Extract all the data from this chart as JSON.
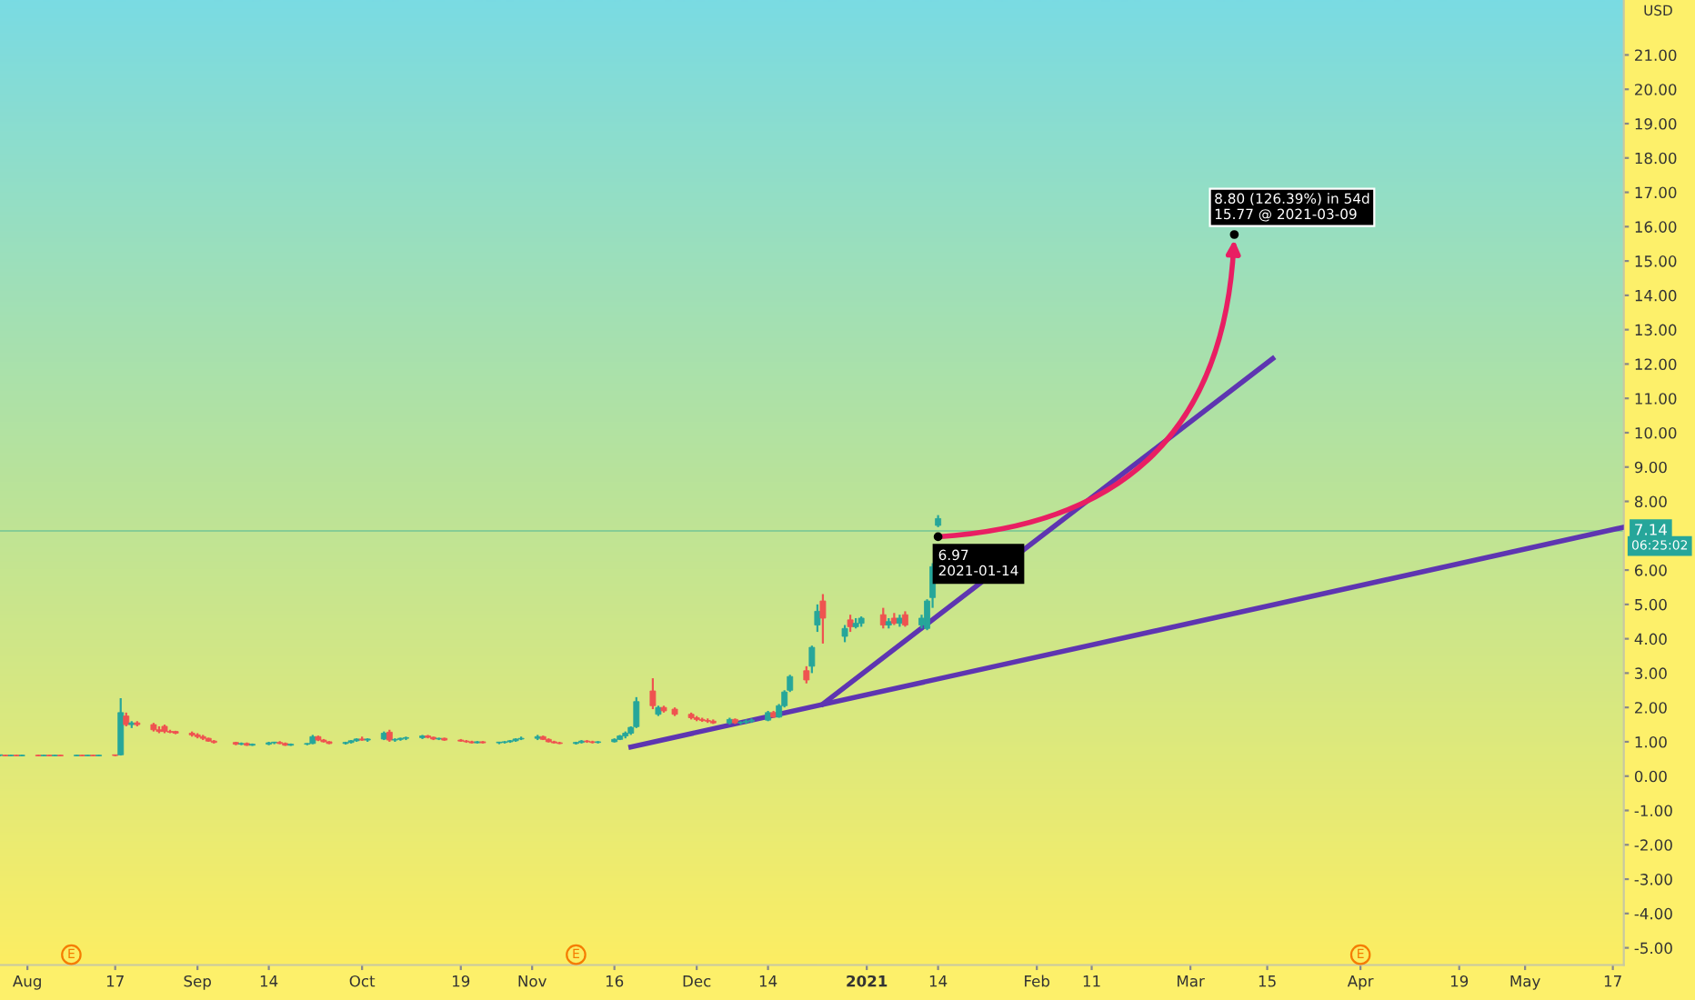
{
  "chart_data": {
    "type": "candlestick",
    "x": [
      "2020-07-27",
      "2020-07-28",
      "2020-07-29",
      "2020-07-30",
      "2020-07-31",
      "2020-08-03",
      "2020-08-04",
      "2020-08-05",
      "2020-08-06",
      "2020-08-07",
      "2020-08-10",
      "2020-08-11",
      "2020-08-12",
      "2020-08-13",
      "2020-08-14",
      "2020-08-17",
      "2020-08-18",
      "2020-08-19",
      "2020-08-20",
      "2020-08-21",
      "2020-08-24",
      "2020-08-25",
      "2020-08-26",
      "2020-08-27",
      "2020-08-28",
      "2020-08-31",
      "2020-09-01",
      "2020-09-02",
      "2020-09-03",
      "2020-09-04",
      "2020-09-08",
      "2020-09-09",
      "2020-09-10",
      "2020-09-11",
      "2020-09-14",
      "2020-09-15",
      "2020-09-16",
      "2020-09-17",
      "2020-09-18",
      "2020-09-21",
      "2020-09-22",
      "2020-09-23",
      "2020-09-24",
      "2020-09-25",
      "2020-09-28",
      "2020-09-29",
      "2020-09-30",
      "2020-10-01",
      "2020-10-02",
      "2020-10-05",
      "2020-10-06",
      "2020-10-07",
      "2020-10-08",
      "2020-10-09",
      "2020-10-12",
      "2020-10-13",
      "2020-10-14",
      "2020-10-15",
      "2020-10-16",
      "2020-10-19",
      "2020-10-20",
      "2020-10-21",
      "2020-10-22",
      "2020-10-23",
      "2020-10-26",
      "2020-10-27",
      "2020-10-28",
      "2020-10-29",
      "2020-10-30",
      "2020-11-02",
      "2020-11-03",
      "2020-11-04",
      "2020-11-05",
      "2020-11-06",
      "2020-11-09",
      "2020-11-10",
      "2020-11-11",
      "2020-11-12",
      "2020-11-13",
      "2020-11-16",
      "2020-11-17",
      "2020-11-18",
      "2020-11-19",
      "2020-11-20",
      "2020-11-23",
      "2020-11-24",
      "2020-11-25",
      "2020-11-27",
      "2020-11-30",
      "2020-12-01",
      "2020-12-02",
      "2020-12-03",
      "2020-12-04",
      "2020-12-07",
      "2020-12-08",
      "2020-12-09",
      "2020-12-10",
      "2020-12-11",
      "2020-12-14",
      "2020-12-15",
      "2020-12-16",
      "2020-12-17",
      "2020-12-18",
      "2020-12-21",
      "2020-12-22",
      "2020-12-23",
      "2020-12-24",
      "2020-12-28",
      "2020-12-29",
      "2020-12-30",
      "2020-12-31",
      "2021-01-04",
      "2021-01-05",
      "2021-01-06",
      "2021-01-07",
      "2021-01-08",
      "2021-01-11",
      "2021-01-12",
      "2021-01-13",
      "2021-01-14"
    ],
    "ohlc": [
      [
        0.6,
        0.62,
        0.58,
        0.61
      ],
      [
        0.61,
        0.62,
        0.58,
        0.59
      ],
      [
        0.59,
        0.62,
        0.58,
        0.61
      ],
      [
        0.61,
        0.62,
        0.58,
        0.59
      ],
      [
        0.59,
        0.62,
        0.58,
        0.61
      ],
      [
        0.61,
        0.62,
        0.58,
        0.59
      ],
      [
        0.59,
        0.62,
        0.58,
        0.61
      ],
      [
        0.61,
        0.62,
        0.58,
        0.59
      ],
      [
        0.59,
        0.62,
        0.58,
        0.61
      ],
      [
        0.61,
        0.62,
        0.58,
        0.59
      ],
      [
        0.59,
        0.62,
        0.58,
        0.61
      ],
      [
        0.61,
        0.62,
        0.58,
        0.59
      ],
      [
        0.59,
        0.62,
        0.58,
        0.61
      ],
      [
        0.61,
        0.62,
        0.58,
        0.59
      ],
      [
        0.59,
        0.62,
        0.58,
        0.61
      ],
      [
        0.61,
        0.62,
        0.58,
        0.6
      ],
      [
        0.62,
        2.27,
        0.6,
        1.85
      ],
      [
        1.75,
        1.85,
        1.45,
        1.5
      ],
      [
        1.5,
        1.6,
        1.4,
        1.55
      ],
      [
        1.55,
        1.6,
        1.45,
        1.5
      ],
      [
        1.5,
        1.55,
        1.3,
        1.35
      ],
      [
        1.35,
        1.45,
        1.25,
        1.3
      ],
      [
        1.45,
        1.5,
        1.25,
        1.3
      ],
      [
        1.3,
        1.35,
        1.25,
        1.28
      ],
      [
        1.3,
        1.32,
        1.22,
        1.25
      ],
      [
        1.25,
        1.3,
        1.15,
        1.2
      ],
      [
        1.2,
        1.25,
        1.1,
        1.15
      ],
      [
        1.15,
        1.2,
        1.05,
        1.1
      ],
      [
        1.1,
        1.12,
        1.0,
        1.02
      ],
      [
        1.02,
        1.05,
        0.95,
        0.98
      ],
      [
        0.98,
        1.0,
        0.9,
        0.93
      ],
      [
        0.93,
        0.98,
        0.9,
        0.95
      ],
      [
        0.95,
        0.98,
        0.88,
        0.9
      ],
      [
        0.9,
        0.95,
        0.88,
        0.93
      ],
      [
        0.93,
        1.0,
        0.9,
        0.97
      ],
      [
        0.97,
        1.0,
        0.93,
        0.98
      ],
      [
        0.98,
        1.02,
        0.93,
        0.95
      ],
      [
        0.95,
        0.98,
        0.88,
        0.9
      ],
      [
        0.9,
        0.95,
        0.88,
        0.93
      ],
      [
        0.93,
        0.96,
        0.9,
        0.95
      ],
      [
        0.95,
        1.2,
        0.93,
        1.15
      ],
      [
        1.15,
        1.18,
        1.02,
        1.05
      ],
      [
        1.05,
        1.08,
        0.98,
        1.0
      ],
      [
        1.0,
        1.02,
        0.93,
        0.95
      ],
      [
        0.95,
        1.0,
        0.92,
        0.98
      ],
      [
        0.98,
        1.05,
        0.95,
        1.03
      ],
      [
        1.03,
        1.1,
        1.0,
        1.08
      ],
      [
        1.08,
        1.15,
        1.03,
        1.05
      ],
      [
        1.05,
        1.1,
        1.0,
        1.08
      ],
      [
        1.08,
        1.3,
        1.05,
        1.25
      ],
      [
        1.28,
        1.35,
        1.0,
        1.05
      ],
      [
        1.05,
        1.1,
        1.0,
        1.07
      ],
      [
        1.07,
        1.12,
        1.03,
        1.1
      ],
      [
        1.1,
        1.15,
        1.05,
        1.12
      ],
      [
        1.12,
        1.2,
        1.08,
        1.17
      ],
      [
        1.17,
        1.2,
        1.1,
        1.13
      ],
      [
        1.13,
        1.15,
        1.05,
        1.08
      ],
      [
        1.08,
        1.12,
        1.05,
        1.1
      ],
      [
        1.1,
        1.12,
        1.03,
        1.05
      ],
      [
        1.05,
        1.08,
        1.0,
        1.02
      ],
      [
        1.02,
        1.05,
        0.97,
        1.0
      ],
      [
        1.0,
        1.03,
        0.95,
        0.97
      ],
      [
        0.97,
        1.02,
        0.95,
        1.0
      ],
      [
        1.0,
        1.02,
        0.95,
        0.97
      ],
      [
        0.97,
        1.0,
        0.93,
        0.98
      ],
      [
        0.98,
        1.02,
        0.95,
        1.0
      ],
      [
        1.0,
        1.05,
        0.97,
        1.03
      ],
      [
        1.03,
        1.1,
        1.0,
        1.08
      ],
      [
        1.08,
        1.15,
        1.05,
        1.1
      ],
      [
        1.1,
        1.2,
        1.05,
        1.15
      ],
      [
        1.15,
        1.18,
        1.05,
        1.07
      ],
      [
        1.07,
        1.1,
        0.98,
        1.0
      ],
      [
        1.0,
        1.03,
        0.95,
        0.97
      ],
      [
        0.97,
        1.0,
        0.93,
        0.95
      ],
      [
        0.95,
        1.0,
        0.92,
        0.98
      ],
      [
        0.98,
        1.05,
        0.95,
        1.02
      ],
      [
        1.02,
        1.05,
        0.97,
        1.0
      ],
      [
        1.0,
        1.03,
        0.95,
        0.98
      ],
      [
        0.98,
        1.02,
        0.95,
        1.0
      ],
      [
        1.0,
        1.1,
        0.98,
        1.07
      ],
      [
        1.07,
        1.2,
        1.05,
        1.17
      ],
      [
        1.17,
        1.3,
        1.1,
        1.25
      ],
      [
        1.25,
        1.45,
        1.2,
        1.42
      ],
      [
        1.44,
        2.3,
        1.4,
        2.17
      ],
      [
        2.48,
        2.85,
        1.95,
        2.05
      ],
      [
        1.8,
        2.05,
        1.75,
        2.0
      ],
      [
        2.0,
        2.05,
        1.85,
        1.9
      ],
      [
        1.95,
        2.0,
        1.75,
        1.8
      ],
      [
        1.8,
        1.85,
        1.65,
        1.7
      ],
      [
        1.7,
        1.75,
        1.6,
        1.65
      ],
      [
        1.65,
        1.7,
        1.58,
        1.62
      ],
      [
        1.62,
        1.68,
        1.55,
        1.6
      ],
      [
        1.6,
        1.65,
        1.52,
        1.55
      ],
      [
        1.55,
        1.7,
        1.5,
        1.65
      ],
      [
        1.65,
        1.68,
        1.52,
        1.55
      ],
      [
        1.55,
        1.6,
        1.5,
        1.57
      ],
      [
        1.57,
        1.65,
        1.52,
        1.6
      ],
      [
        1.6,
        1.68,
        1.55,
        1.63
      ],
      [
        1.63,
        1.9,
        1.6,
        1.85
      ],
      [
        1.85,
        1.9,
        1.7,
        1.72
      ],
      [
        1.72,
        2.1,
        1.7,
        2.05
      ],
      [
        2.05,
        2.5,
        2.0,
        2.45
      ],
      [
        2.5,
        2.95,
        2.45,
        2.9
      ],
      [
        3.07,
        3.2,
        2.7,
        2.8
      ],
      [
        3.2,
        3.8,
        3.0,
        3.75
      ],
      [
        4.4,
        5.0,
        4.2,
        4.8
      ],
      [
        5.1,
        5.3,
        3.86,
        4.6
      ],
      [
        4.07,
        4.4,
        3.9,
        4.3
      ],
      [
        4.55,
        4.7,
        4.2,
        4.35
      ],
      [
        4.35,
        4.6,
        4.3,
        4.45
      ],
      [
        4.45,
        4.65,
        4.35,
        4.6
      ],
      [
        4.7,
        4.9,
        4.3,
        4.4
      ],
      [
        4.4,
        4.6,
        4.3,
        4.5
      ],
      [
        4.6,
        4.75,
        4.4,
        4.45
      ],
      [
        4.45,
        4.7,
        4.35,
        4.6
      ],
      [
        4.7,
        4.8,
        4.35,
        4.4
      ],
      [
        4.4,
        4.7,
        4.3,
        4.6
      ],
      [
        4.3,
        5.15,
        4.25,
        5.1
      ],
      [
        5.2,
        6.2,
        4.9,
        6.1
      ],
      [
        7.3,
        7.6,
        7.25,
        7.5
      ]
    ],
    "series": [
      {
        "type": "line",
        "color": "#5e35b1",
        "x": [
          "2020-11-19",
          "2021-05-19"
        ],
        "values": [
          0.85,
          7.25
        ]
      },
      {
        "type": "line",
        "color": "#5e35b1",
        "x": [
          "2020-12-24",
          "2021-03-16"
        ],
        "values": [
          2.1,
          12.16
        ]
      }
    ],
    "xlim": [
      "2020-07-27",
      "2021-05-19"
    ],
    "xticks": [
      {
        "value": "2020-08-01",
        "label": "Aug"
      },
      {
        "value": "2020-08-17",
        "label": "17"
      },
      {
        "value": "2020-09-01",
        "label": "Sep"
      },
      {
        "value": "2020-09-14",
        "label": "14"
      },
      {
        "value": "2020-10-01",
        "label": "Oct"
      },
      {
        "value": "2020-10-19",
        "label": "19"
      },
      {
        "value": "2020-11-01",
        "label": "Nov"
      },
      {
        "value": "2020-11-16",
        "label": "16"
      },
      {
        "value": "2020-12-01",
        "label": "Dec"
      },
      {
        "value": "2020-12-14",
        "label": "14"
      },
      {
        "value": "2021-01-01",
        "label": "2021"
      },
      {
        "value": "2021-01-14",
        "label": "14"
      },
      {
        "value": "2021-02-01",
        "label": "Feb"
      },
      {
        "value": "2021-02-11",
        "label": "11"
      },
      {
        "value": "2021-03-01",
        "label": "Mar"
      },
      {
        "value": "2021-03-15",
        "label": "15"
      },
      {
        "value": "2021-04-01",
        "label": "Apr"
      },
      {
        "value": "2021-04-19",
        "label": "19"
      },
      {
        "value": "2021-05-01",
        "label": "May"
      },
      {
        "value": "2021-05-17",
        "label": "17"
      }
    ],
    "ylim": [
      -5.5,
      22.6
    ],
    "yticks": [
      {
        "value": -5,
        "label": "-5.00"
      },
      {
        "value": -4,
        "label": "-4.00"
      },
      {
        "value": -3,
        "label": "-3.00"
      },
      {
        "value": -2,
        "label": "-2.00"
      },
      {
        "value": -1,
        "label": "-1.00"
      },
      {
        "value": 0,
        "label": "0.00"
      },
      {
        "value": 1,
        "label": "1.00"
      },
      {
        "value": 2,
        "label": "2.00"
      },
      {
        "value": 3,
        "label": "3.00"
      },
      {
        "value": 4,
        "label": "4.00"
      },
      {
        "value": 5,
        "label": "5.00"
      },
      {
        "value": 6,
        "label": "6.00"
      },
      {
        "value": 8,
        "label": "8.00"
      },
      {
        "value": 9,
        "label": "9.00"
      },
      {
        "value": 10,
        "label": "10.00"
      },
      {
        "value": 11,
        "label": "11.00"
      },
      {
        "value": 12,
        "label": "12.00"
      },
      {
        "value": 13,
        "label": "13.00"
      },
      {
        "value": 14,
        "label": "14.00"
      },
      {
        "value": 15,
        "label": "15.00"
      },
      {
        "value": 16,
        "label": "16.00"
      },
      {
        "value": 17,
        "label": "17.00"
      },
      {
        "value": 18,
        "label": "18.00"
      },
      {
        "value": 19,
        "label": "19.00"
      },
      {
        "value": 20,
        "label": "20.00"
      },
      {
        "value": 21,
        "label": "21.00"
      }
    ],
    "ylabel": "USD",
    "ref_lines": [
      {
        "axis": "y",
        "value": 7.14,
        "label": "7.14",
        "color": "#26a69a"
      }
    ],
    "annotations": [
      {
        "text": "6.97\n2021-01-14",
        "x": "2021-01-14",
        "y": 6.97
      },
      {
        "text": "8.80 (126.39%) in 54d\n15.77 @ 2021-03-09",
        "x": "2021-03-09",
        "y": 15.77
      },
      {
        "text": "E",
        "x": "2020-08-09",
        "y": -5.2
      },
      {
        "text": "E",
        "x": "2020-11-09",
        "y": -5.2
      },
      {
        "text": "E",
        "x": "2021-04-01",
        "y": -5.2
      },
      "06:25:02"
    ],
    "grid": false,
    "legend": false
  }
}
